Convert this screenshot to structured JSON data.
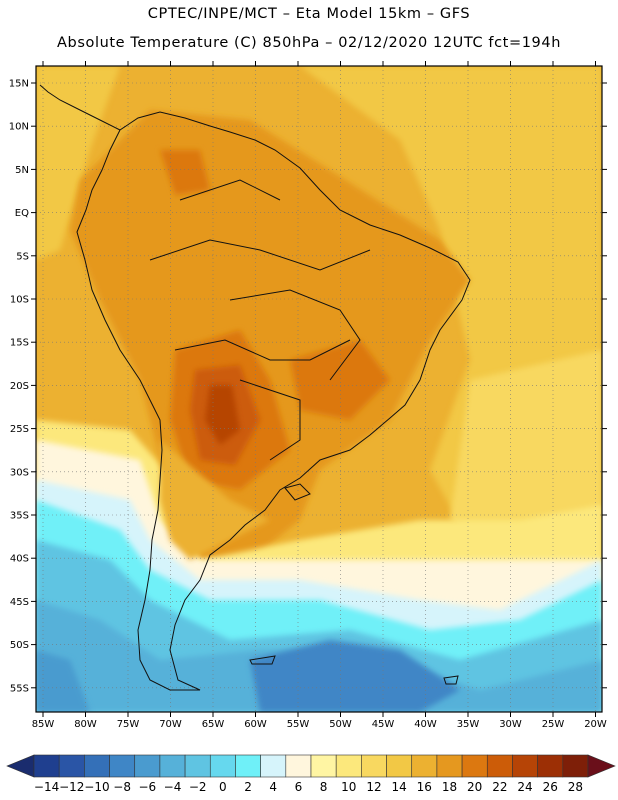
{
  "header": {
    "line1": "CPTEC/INPE/MCT –  Eta Model 15km – GFS",
    "line2": "Absolute Temperature (C) 850hPa – 02/12/2020 12UTC fct=194h"
  },
  "map": {
    "lat_labels": [
      "15N",
      "10N",
      "5N",
      "EQ",
      "5S",
      "10S",
      "15S",
      "20S",
      "25S",
      "30S",
      "35S",
      "40S",
      "45S",
      "50S",
      "55S"
    ],
    "lon_labels": [
      "85W",
      "80W",
      "75W",
      "70W",
      "65W",
      "60W",
      "55W",
      "50W",
      "45W",
      "40W",
      "35W",
      "30W",
      "25W",
      "20W"
    ]
  },
  "colorbar": {
    "labels": [
      "-14",
      "-12",
      "-10",
      "-8",
      "-6",
      "-4",
      "-2",
      "0",
      "2",
      "4",
      "6",
      "8",
      "10",
      "12",
      "14",
      "16",
      "18",
      "20",
      "22",
      "24",
      "26",
      "28"
    ],
    "colors": [
      "#1f3f8f",
      "#2a55a6",
      "#3470b8",
      "#3f86c6",
      "#4a9bcf",
      "#56b1d9",
      "#5fc4e2",
      "#66d8ee",
      "#6ff0f8",
      "#d6f4fb",
      "#fff6dd",
      "#fff5a3",
      "#fce87c",
      "#f8d860",
      "#f2c845",
      "#ecb131",
      "#e5981f",
      "#dc7810",
      "#cc5c08",
      "#b64406",
      "#9c2f05",
      "#7e1f08"
    ],
    "under_color": "#1a2c6e",
    "over_color": "#6a0f1a"
  }
}
